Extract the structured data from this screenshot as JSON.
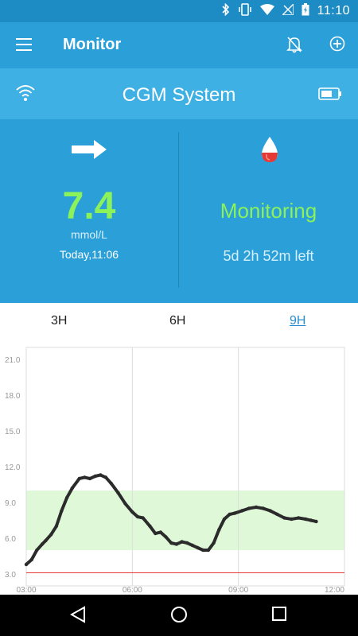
{
  "status_bar": {
    "time": "11:10"
  },
  "app_bar": {
    "title": "Monitor"
  },
  "device": {
    "name": "CGM System"
  },
  "reading": {
    "value": "7.4",
    "unit": "mmol/L",
    "timestamp": "Today,11:06"
  },
  "sensor": {
    "status": "Monitoring",
    "remaining": "5d 2h 52m left"
  },
  "tabs": [
    {
      "label": "3H",
      "active": false
    },
    {
      "label": "6H",
      "active": false
    },
    {
      "label": "9H",
      "active": true
    }
  ],
  "colors": {
    "primary": "#2a9fd8",
    "accent_green": "#8cf25a",
    "target_band": "#dff8d8",
    "low_line": "#e53935",
    "curve": "#2b2b2b"
  },
  "chart_data": {
    "type": "line",
    "x_ticks": [
      "03:00",
      "06:00",
      "09:00",
      "12:00"
    ],
    "y_ticks": [
      "3.0",
      "6.0",
      "9.0",
      "12.0",
      "15.0",
      "18.0",
      "21.0"
    ],
    "xlim": [
      3,
      12
    ],
    "ylim": [
      2.0,
      22.0
    ],
    "target_range": [
      5.0,
      10.0
    ],
    "low_threshold": 3.1,
    "series": [
      {
        "x": [
          3.0,
          3.15,
          3.3,
          3.45,
          3.55,
          3.7,
          3.85,
          4.0,
          4.15,
          4.3,
          4.5,
          4.65,
          4.8,
          4.95,
          5.1,
          5.25,
          5.4,
          5.6,
          5.8,
          6.0,
          6.15,
          6.3,
          6.5,
          6.65,
          6.8,
          6.95,
          7.1,
          7.25,
          7.4,
          7.55,
          7.7,
          7.85,
          8.0,
          8.15,
          8.3,
          8.45,
          8.6,
          8.75,
          8.9,
          9.1,
          9.3,
          9.5,
          9.7,
          9.9,
          10.1,
          10.3,
          10.5,
          10.7,
          10.9,
          11.05,
          11.2
        ],
        "y": [
          3.8,
          4.2,
          5.0,
          5.5,
          5.8,
          6.3,
          7.0,
          8.3,
          9.4,
          10.2,
          11.0,
          11.1,
          11.0,
          11.2,
          11.3,
          11.1,
          10.6,
          9.8,
          8.9,
          8.2,
          7.8,
          7.7,
          7.0,
          6.4,
          6.5,
          6.1,
          5.6,
          5.5,
          5.7,
          5.6,
          5.4,
          5.2,
          5.0,
          5.0,
          5.6,
          6.7,
          7.6,
          8.0,
          8.1,
          8.3,
          8.5,
          8.6,
          8.5,
          8.3,
          8.0,
          7.7,
          7.6,
          7.7,
          7.6,
          7.5,
          7.4
        ]
      }
    ]
  }
}
